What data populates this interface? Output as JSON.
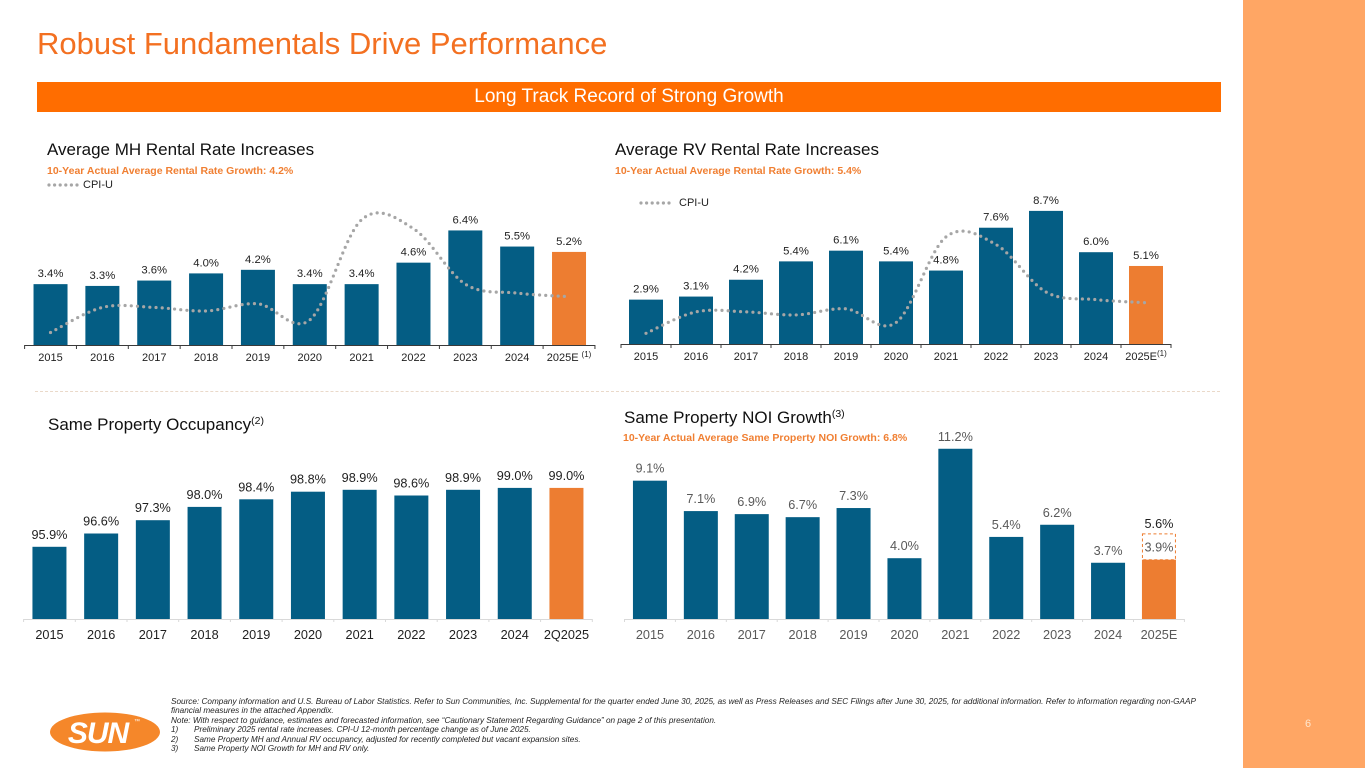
{
  "slide": {
    "title": "Robust Fundamentals Drive Performance",
    "banner": "Long Track Record of Strong Growth",
    "page_number": "6",
    "logo_text": "SUN",
    "logo_mark": "™"
  },
  "colors": {
    "brand_orange": "#F37021",
    "banner_orange": "#FF6D00",
    "sidebar_orange": "#FFA664",
    "subtitle_orange": "#F07F32",
    "bar_blue": "#045D84",
    "bar_highlight": "#ED7D31",
    "cpi_gray": "#A6A6A6"
  },
  "footer": {
    "source": "Source: Company information and U.S. Bureau of Labor Statistics. Refer to Sun Communities, Inc. Supplemental for the quarter ended June 30, 2025, as well as Press Releases and SEC Filings after June 30, 2025, for additional information. Refer to information regarding non-GAAP financial measures in the attached Appendix.",
    "note": "Note: With respect to guidance, estimates and forecasted information, see “Cautionary Statement Regarding Guidance” on page 2 of this presentation.",
    "footnotes": [
      {
        "num": "1)",
        "text": "Preliminary 2025 rental rate increases. CPI-U 12-month percentage change as of June 2025."
      },
      {
        "num": "2)",
        "text": "Same Property MH and Annual RV occupancy, adjusted for recently completed but vacant expansion sites."
      },
      {
        "num": "3)",
        "text": "Same Property NOI Growth for MH and RV only."
      }
    ]
  },
  "chart_data": [
    {
      "id": "mh",
      "type": "bar",
      "title": "Average MH Rental Rate Increases",
      "subtitle": "10-Year Actual Average Rental Rate Growth: 4.2%",
      "xlabel": "",
      "ylabel": "",
      "ylim": [
        0,
        8
      ],
      "grid": false,
      "legend": {
        "entries": [
          "CPI-U"
        ],
        "position": "top-left"
      },
      "categories": [
        "2015",
        "2016",
        "2017",
        "2018",
        "2019",
        "2020",
        "2021",
        "2022",
        "2023",
        "2024",
        "2025E"
      ],
      "category_footnotes": {
        "10": "(1)"
      },
      "series": [
        {
          "name": "Average MH Rental Rate Increase",
          "type": "bar",
          "values": [
            3.4,
            3.3,
            3.6,
            4.0,
            4.2,
            3.4,
            3.4,
            4.6,
            6.4,
            5.5,
            5.2
          ],
          "labels": [
            "3.4%",
            "3.3%",
            "3.6%",
            "4.0%",
            "4.2%",
            "3.4%",
            "3.4%",
            "4.6%",
            "6.4%",
            "5.5%",
            "5.2%"
          ],
          "highlight_index": 10
        },
        {
          "name": "CPI-U",
          "type": "line",
          "style": "dotted",
          "values": [
            0.7,
            2.1,
            2.1,
            1.9,
            2.3,
            1.4,
            7.0,
            6.5,
            3.4,
            2.9,
            2.7
          ]
        }
      ]
    },
    {
      "id": "rv",
      "type": "bar",
      "title": "Average RV Rental Rate Increases",
      "subtitle": "10-Year Actual Average Rental Rate Growth: 5.4%",
      "xlabel": "",
      "ylabel": "",
      "ylim": [
        0,
        10
      ],
      "grid": false,
      "legend": {
        "entries": [
          "CPI-U"
        ],
        "position": "top-left"
      },
      "categories": [
        "2015",
        "2016",
        "2017",
        "2018",
        "2019",
        "2020",
        "2021",
        "2022",
        "2023",
        "2024",
        "2025E"
      ],
      "category_footnotes": {
        "10": "(1)"
      },
      "series": [
        {
          "name": "Average RV Rental Rate Increase",
          "type": "bar",
          "values": [
            2.9,
            3.1,
            4.2,
            5.4,
            6.1,
            5.4,
            4.8,
            7.6,
            8.7,
            6.0,
            5.1
          ],
          "labels": [
            "2.9%",
            "3.1%",
            "4.2%",
            "5.4%",
            "6.1%",
            "5.4%",
            "4.8%",
            "7.6%",
            "8.7%",
            "6.0%",
            "5.1%"
          ],
          "highlight_index": 10
        },
        {
          "name": "CPI-U",
          "type": "line",
          "style": "dotted",
          "values": [
            0.7,
            2.1,
            2.1,
            1.9,
            2.3,
            1.4,
            7.0,
            6.5,
            3.4,
            2.9,
            2.7
          ]
        }
      ]
    },
    {
      "id": "occ",
      "type": "bar",
      "title": "Same Property Occupancy",
      "title_footnote": "(2)",
      "xlabel": "",
      "ylabel": "",
      "ylim": [
        92.1,
        99.5
      ],
      "grid": false,
      "categories": [
        "2015",
        "2016",
        "2017",
        "2018",
        "2019",
        "2020",
        "2021",
        "2022",
        "2023",
        "2024",
        "2Q2025"
      ],
      "series": [
        {
          "name": "Same Property Occupancy",
          "type": "bar",
          "values": [
            95.9,
            96.6,
            97.3,
            98.0,
            98.4,
            98.8,
            98.9,
            98.6,
            98.9,
            99.0,
            99.0
          ],
          "labels": [
            "95.9%",
            "96.6%",
            "97.3%",
            "98.0%",
            "98.4%",
            "98.8%",
            "98.9%",
            "98.6%",
            "98.9%",
            "99.0%",
            "99.0%"
          ],
          "highlight_index": 10
        }
      ]
    },
    {
      "id": "noi",
      "type": "bar",
      "title": "Same Property NOI Growth",
      "title_footnote": "(3)",
      "subtitle": "10-Year Actual Average Same Property NOI Growth: 6.8%",
      "xlabel": "",
      "ylabel": "",
      "ylim": [
        0,
        12
      ],
      "grid": false,
      "categories": [
        "2015",
        "2016",
        "2017",
        "2018",
        "2019",
        "2020",
        "2021",
        "2022",
        "2023",
        "2024",
        "2025E"
      ],
      "series": [
        {
          "name": "Same Property NOI Growth",
          "type": "bar",
          "values": [
            9.1,
            7.1,
            6.9,
            6.7,
            7.3,
            4.0,
            11.2,
            5.4,
            6.2,
            3.7,
            3.9
          ],
          "labels": [
            "9.1%",
            "7.1%",
            "6.9%",
            "6.7%",
            "7.3%",
            "4.0%",
            "11.2%",
            "5.4%",
            "6.2%",
            "3.7%",
            "3.9%"
          ],
          "highlight_index": 10,
          "range": {
            "index": 10,
            "low": 3.9,
            "high": 5.6,
            "high_label": "5.6%"
          }
        }
      ]
    }
  ]
}
